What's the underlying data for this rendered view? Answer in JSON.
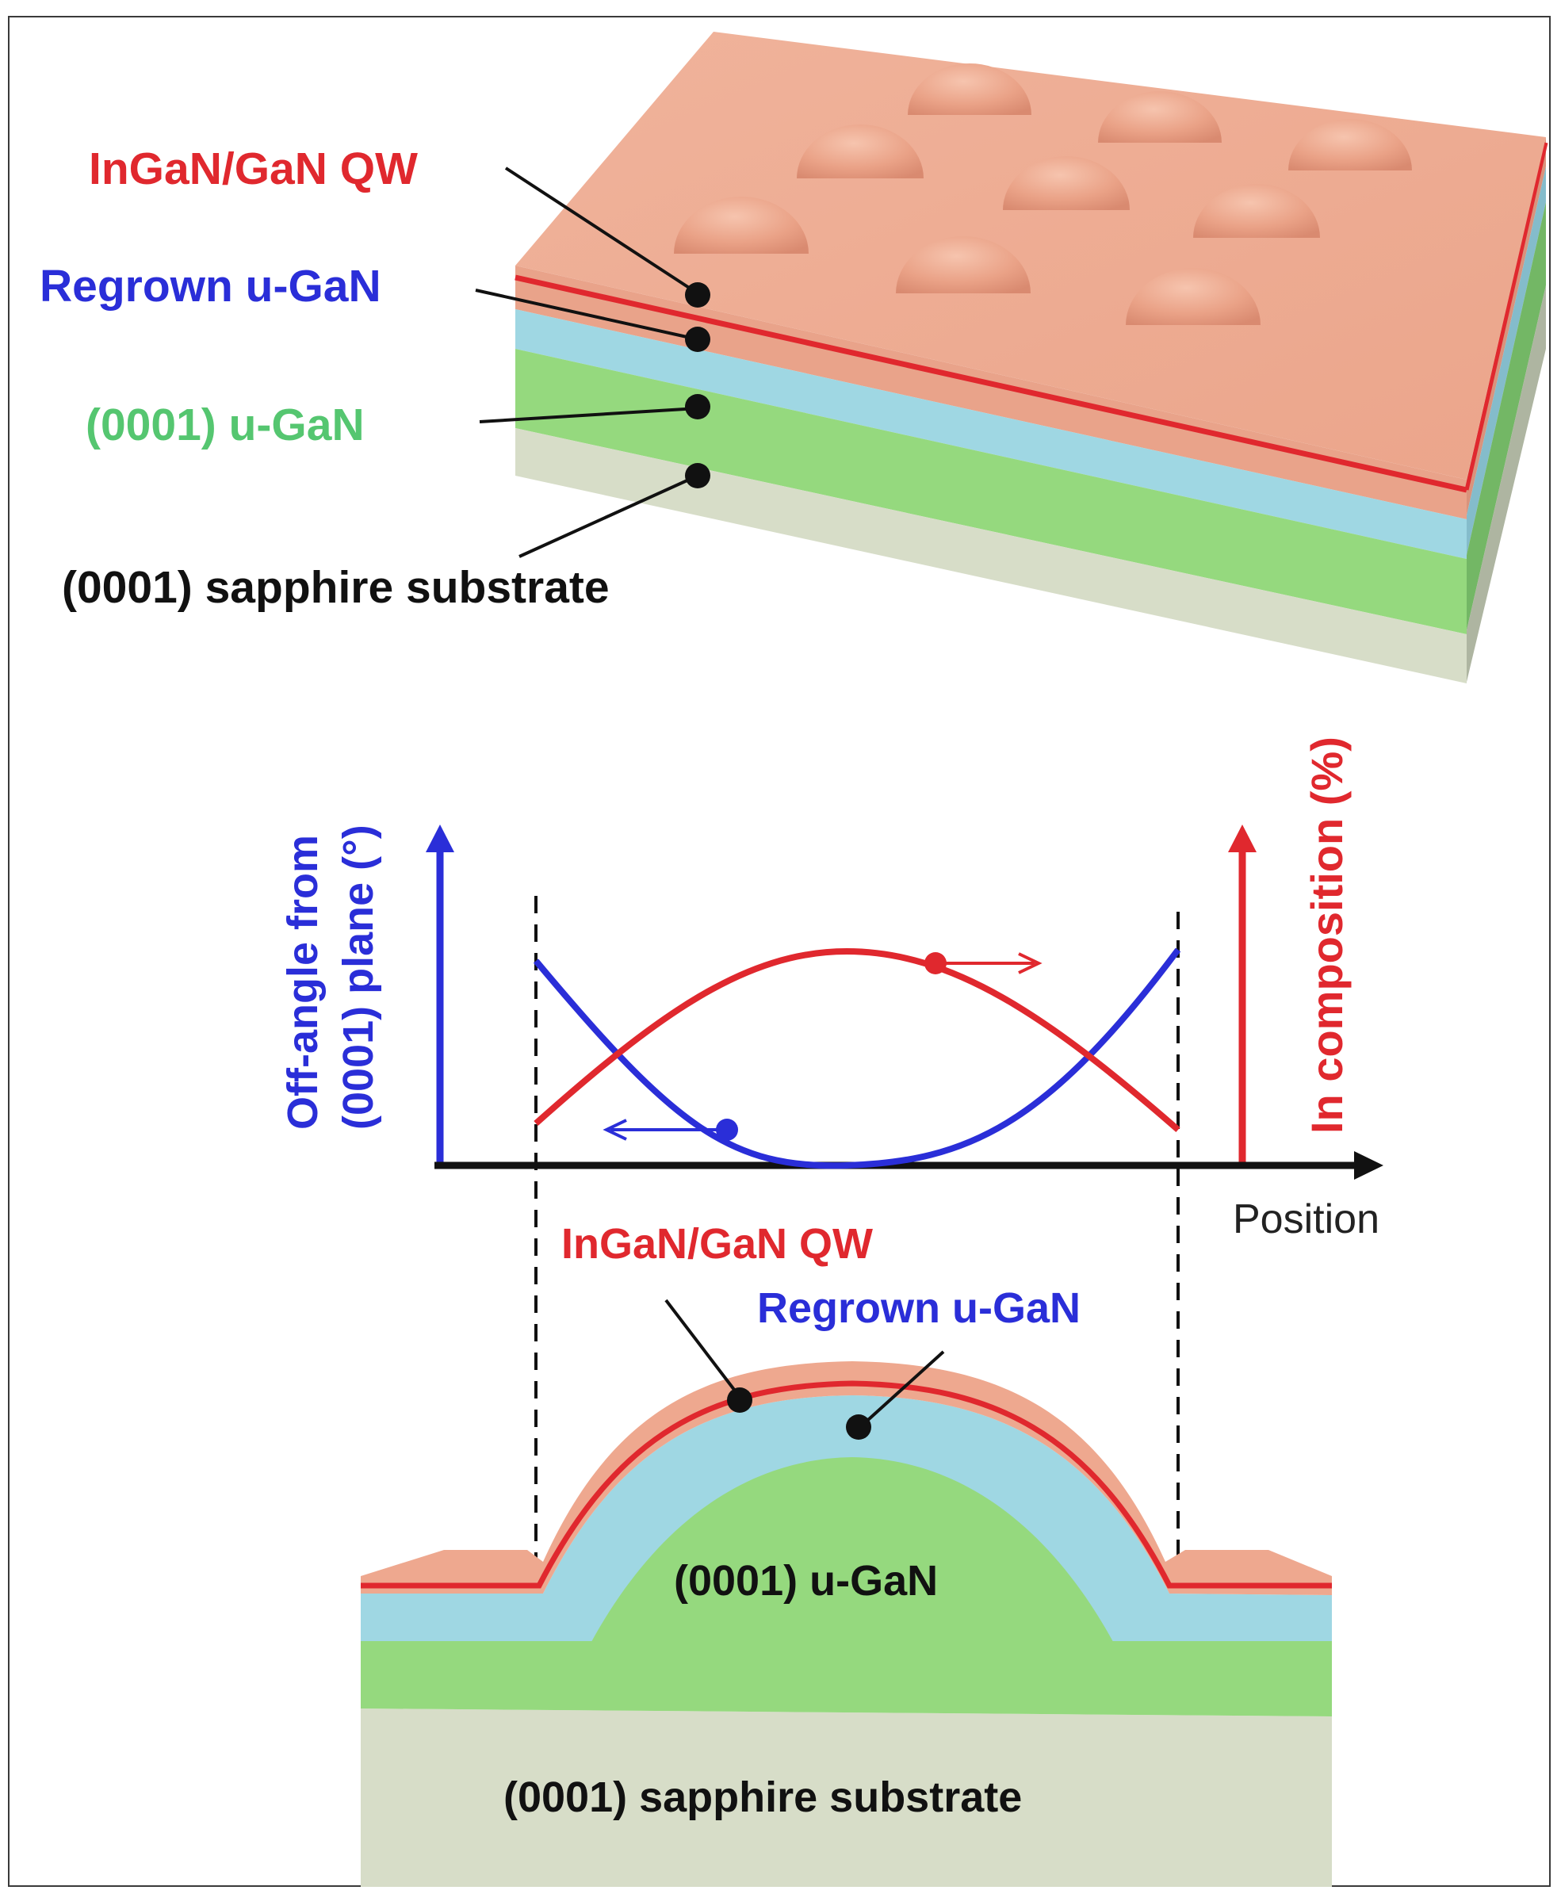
{
  "colors": {
    "qw_red": "#e0282e",
    "regrown_blue": "#2a2ed8",
    "ugan_green": "#55c670",
    "substrate_text": "#111111",
    "cap_salmon": "#eea88f",
    "layer_blue": "#9fd7e3",
    "layer_green": "#95d97e",
    "substrate_gray": "#d7ddc8",
    "axis_black": "#111111"
  },
  "top_view": {
    "labels": {
      "qw": "InGaN/GaN QW",
      "regrown": "Regrown u-GaN",
      "ugan": "(0001) u-GaN",
      "substrate": "(0001) sapphire substrate"
    }
  },
  "chart": {
    "y_left_label_line1": "Off-angle from",
    "y_left_label_line2": "(0001) plane (°)",
    "y_right_label": "In composition (%)",
    "x_label": "Position"
  },
  "cross_section": {
    "labels": {
      "qw": "InGaN/GaN QW",
      "regrown": "Regrown u-GaN",
      "ugan": "(0001) u-GaN",
      "substrate": "(0001) sapphire substrate"
    }
  },
  "icons": [
    "arrow-right-icon",
    "arrow-left-icon",
    "axis-arrow-up-icon",
    "axis-arrow-right-icon"
  ]
}
